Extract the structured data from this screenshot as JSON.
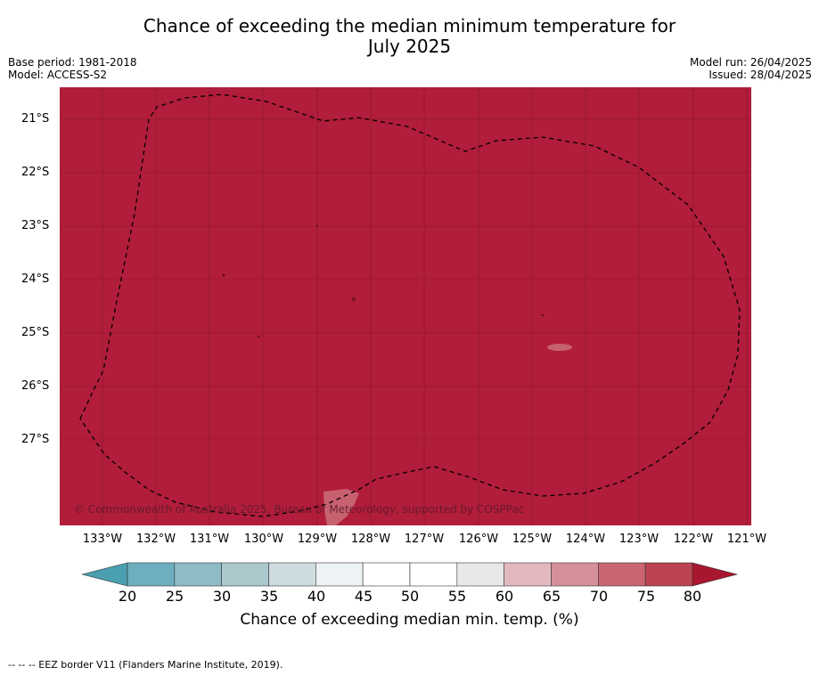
{
  "title_line1": "Chance of exceeding the median minimum temperature for",
  "title_line2": "July 2025",
  "base_period": "Base period: 1981-2018",
  "model": "Model: ACCESS-S2",
  "model_run": "Model run: 26/04/2025",
  "issued": "Issued: 28/04/2025",
  "lat_labels": [
    "21°S",
    "22°S",
    "23°S",
    "24°S",
    "25°S",
    "26°S",
    "27°S"
  ],
  "lon_labels": [
    "133°W",
    "132°W",
    "131°W",
    "130°W",
    "129°W",
    "128°W",
    "127°W",
    "126°W",
    "125°W",
    "124°W",
    "123°W",
    "122°W",
    "121°W"
  ],
  "copyright": "© Commonwealth of Australia 2025, Bureau of Meteorology, supported by COSPPac",
  "colorbar": {
    "ticks": [
      "20",
      "25",
      "30",
      "35",
      "40",
      "45",
      "50",
      "55",
      "60",
      "65",
      "70",
      "75",
      "80"
    ],
    "label": "Chance of exceeding median min. temp. (%)",
    "colors": {
      "under": "#4a9fb1",
      "bins": [
        "#6eafbf",
        "#8dbbc6",
        "#abc9cd",
        "#cddcdf",
        "#edf3f4",
        "#ffffff",
        "#ffffff",
        "#e8e8e8",
        "#e3b8be",
        "#d6909a",
        "#c96572",
        "#bd4352"
      ],
      "over": "#a8172f"
    }
  },
  "map_fill_color": "#b11d3a",
  "footnote": "--  --  -- EEZ border V11 (Flanders Marine Institute, 2019)."
}
